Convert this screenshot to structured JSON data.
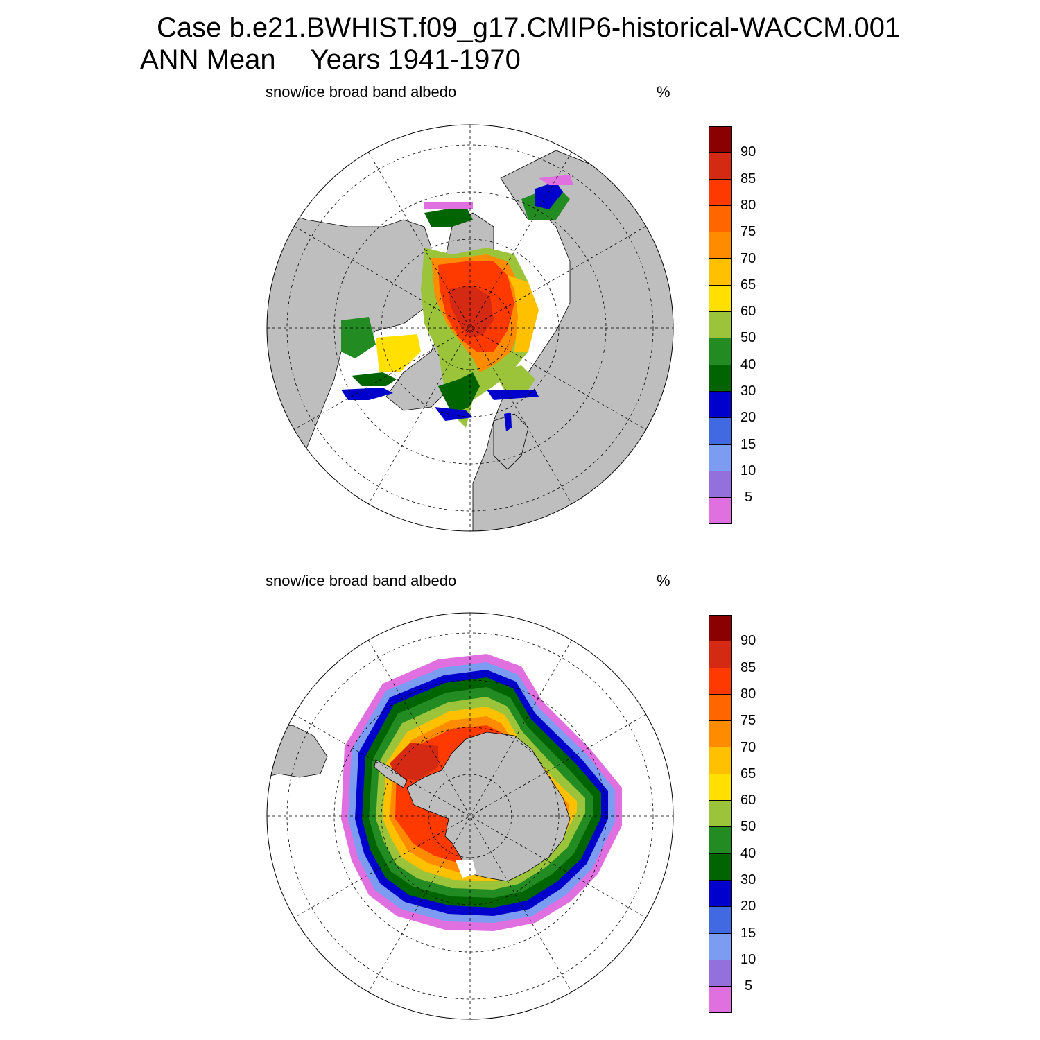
{
  "header": {
    "case_line": "Case b.e21.BWHIST.f09_g17.CMIP6-historical-WACCM.001",
    "period_left": "ANN Mean",
    "period_right": "Years 1941-1970"
  },
  "panels": [
    {
      "id": "north",
      "hemisphere": "Northern",
      "title": "snow/ice broad band albedo",
      "units": "%"
    },
    {
      "id": "south",
      "hemisphere": "Southern",
      "title": "snow/ice broad band albedo",
      "units": "%"
    }
  ],
  "colorbar": {
    "labels": [
      "90",
      "85",
      "80",
      "75",
      "70",
      "65",
      "60",
      "50",
      "40",
      "30",
      "20",
      "15",
      "10",
      "5"
    ],
    "colors": [
      "#8b0000",
      "#d42a14",
      "#ff3a00",
      "#ff6600",
      "#ff8c00",
      "#ffc000",
      "#ffe000",
      "#9bc43a",
      "#228b22",
      "#006400",
      "#0000cd",
      "#4169e1",
      "#7b9cf0",
      "#9370db",
      "#e070e0"
    ]
  },
  "colors": {
    "land": "#bebebe",
    "ocean": "#ffffff"
  }
}
